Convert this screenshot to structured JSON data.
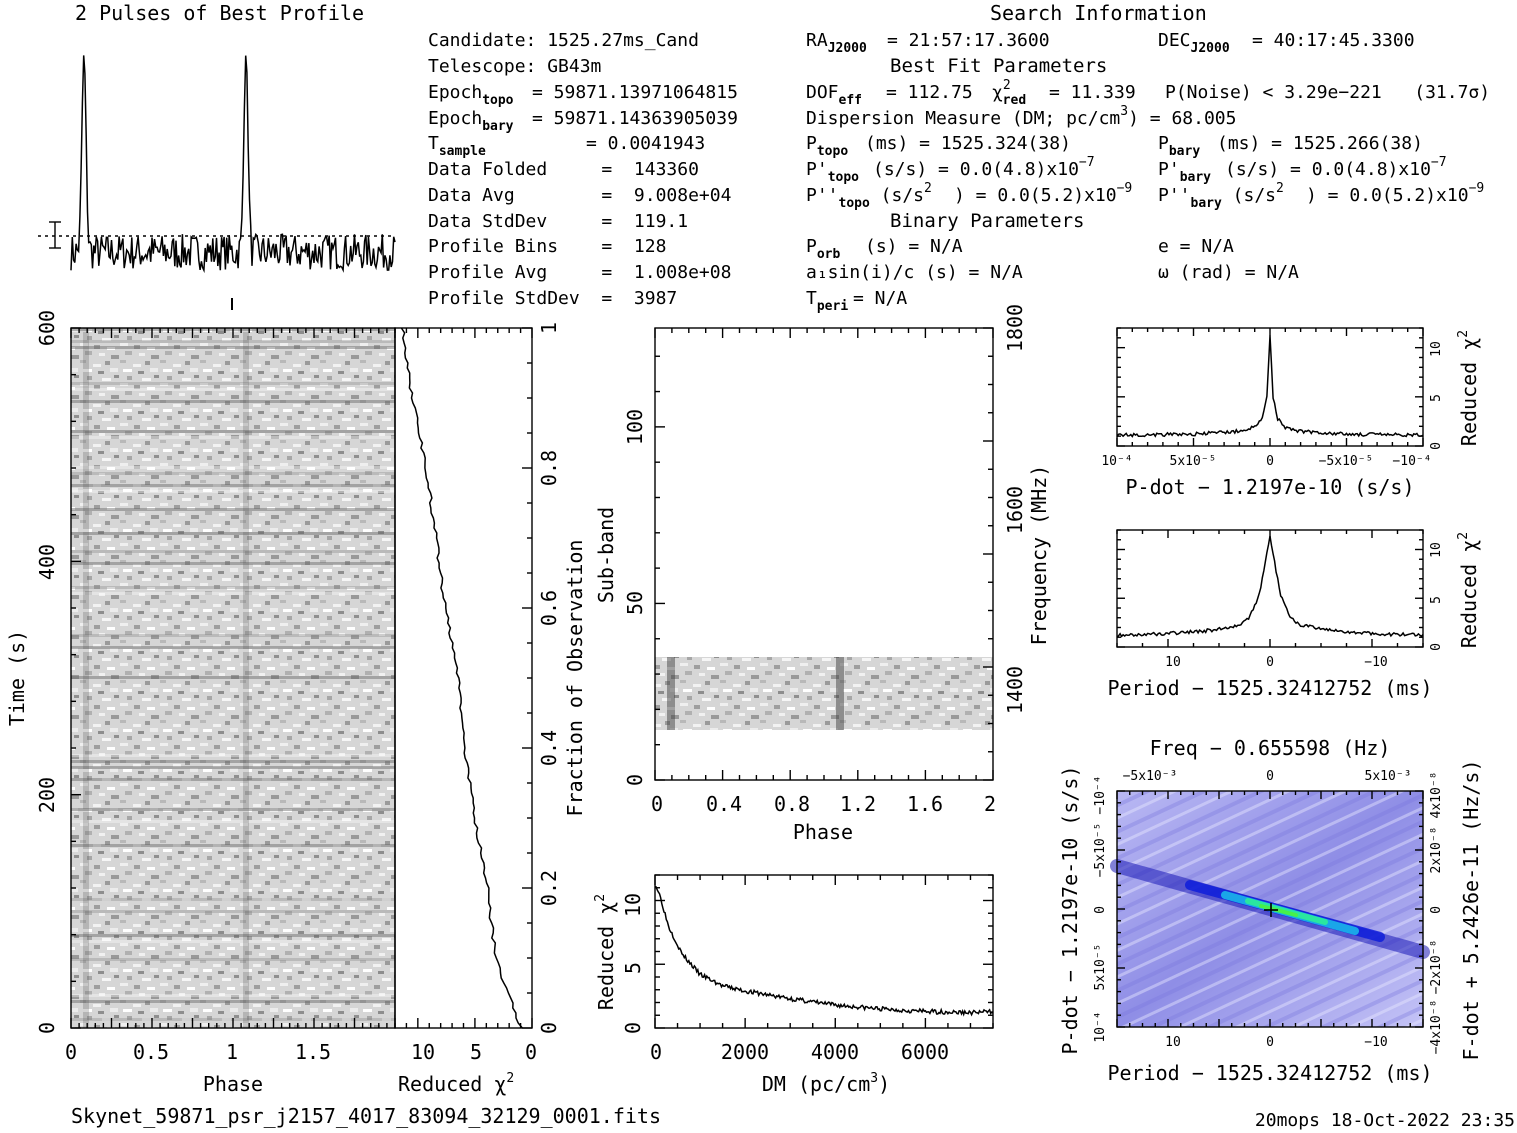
{
  "page": {
    "filename": "Skynet_59871_psr_j2157_4017_83094_32129_0001.fits",
    "footer_right": "20mops 18-Oct-2022 23:35"
  },
  "search_info": {
    "heading": "Search Information",
    "best_fit_heading": "Best Fit Parameters",
    "binary_heading": "Binary Parameters",
    "candidate": "Candidate:  1525.27ms_Cand",
    "telescope": "Telescope:  GB43m",
    "epoch_topo_value": "= 59871.13971064815",
    "epoch_bary_value": "= 59871.14363905039",
    "t_sample_value": "=  0.0041943",
    "data_folded": "Data Folded     =  143360",
    "data_avg": "Data Avg        =  9.008e+04",
    "data_stddev": "Data StdDev     =  119.1",
    "profile_bins": "Profile Bins    =  128",
    "profile_avg": "Profile Avg     =  1.008e+08",
    "profile_stddev": "Profile StdDev  =  3987",
    "ra_value": "= 21:57:17.3600",
    "dec_value": "= 40:17:45.3300",
    "dof_value": "= 112.75",
    "chi2_value": "= 11.339",
    "p_noise": "P(Noise) < 3.29e−221   (31.7σ)",
    "dm_text": "Dispersion Measure (DM; pc/cm",
    "dm_value": ") = 68.005",
    "p_topo": "(ms) =  1525.324(38)",
    "p_bary": "(ms) =  1525.266(38)",
    "pd_topo": "(s/s) = 0.0(4.8)x10",
    "pd_bary": "(s/s) = 0.0(4.8)x10",
    "pd_exp": "−7",
    "pdd_topo": ") = 0.0(5.2)x10",
    "pdd_bary": ") = 0.0(5.2)x10",
    "pdd_exp": "−9",
    "p_orb": "(s) = N/A",
    "a1sini": "a₁sin(i)/c (s) = N/A",
    "t_peri": "= N/A",
    "ecc": "e = N/A",
    "omega": "ω (rad) = N/A"
  },
  "profile_panel": {
    "title": "2 Pulses of Best Profile"
  },
  "time_phase_panel": {
    "xlabel": "Phase",
    "ylabel": "Time (s)",
    "xticks": [
      "0",
      "0.5",
      "1",
      "1.5"
    ],
    "yticks": [
      "0",
      "200",
      "400",
      "600"
    ]
  },
  "chi_vs_time_panel": {
    "xlabel": "Reduced χ²",
    "xticks": [
      "10",
      "5",
      "0"
    ],
    "ylabel": "Fraction of Observation",
    "yticks": [
      "0",
      "0.2",
      "0.4",
      "0.6",
      "0.8",
      "1"
    ]
  },
  "subband_panel": {
    "xlabel": "Phase",
    "ylabel": "Sub-band",
    "ylabel_right": "Frequency (MHz)",
    "xticks": [
      "0",
      "0.4",
      "0.8",
      "1.2",
      "1.6",
      "2"
    ],
    "yticks": [
      "0",
      "50",
      "100"
    ],
    "yticks_right": [
      "1400",
      "1600",
      "1800"
    ]
  },
  "dm_panel": {
    "xlabel": "DM (pc/cm³)",
    "ylabel": "Reduced χ²",
    "xticks": [
      "0",
      "2000",
      "4000",
      "6000"
    ],
    "yticks": [
      "0",
      "5",
      "10"
    ]
  },
  "pdot_panel": {
    "xlabel": "P-dot − 1.2197e-10 (s/s)",
    "ylabel": "Reduced χ²",
    "xticks": [
      "10⁻⁴",
      "5x10⁻⁵",
      "0",
      "−5x10⁻⁵",
      "−10⁻⁴"
    ],
    "yticks": [
      "0",
      "5",
      "10"
    ]
  },
  "period_panel": {
    "xlabel": "Period − 1525.32412752 (ms)",
    "ylabel": "Reduced χ²",
    "xticks": [
      "10",
      "0",
      "−10"
    ],
    "yticks": [
      "0",
      "5",
      "10"
    ]
  },
  "ppdot_panel": {
    "title": "Freq − 0.655598 (Hz)",
    "xlabel": "Period − 1525.32412752 (ms)",
    "ylabel": "P-dot − 1.2197e-10 (s/s)",
    "ylabel_right": "F-dot + 5.2426e-11 (Hz/s)",
    "xticks": [
      "10",
      "0",
      "−10"
    ],
    "top_ticks": [
      "−5x10⁻³",
      "0",
      "5x10⁻³"
    ],
    "yticks": [
      "10⁻⁴",
      "5x10⁻⁵",
      "0",
      "−5x10⁻⁵",
      "−10⁻⁴"
    ],
    "yticks_right": [
      "−4x10⁻⁸",
      "−2x10⁻⁸",
      "0",
      "2x10⁻⁸",
      "4x10⁻⁸"
    ]
  },
  "chart_data": [
    {
      "type": "line",
      "name": "profile",
      "title": "2 Pulses of Best Profile",
      "x": [
        0,
        0.0625,
        0.125,
        0.25,
        0.375,
        0.5,
        0.625,
        0.75,
        0.875,
        1.0,
        1.0625,
        1.125,
        1.25,
        1.375,
        1.5,
        1.625,
        1.75,
        1.875,
        2.0
      ],
      "y": [
        0.05,
        0.95,
        0.12,
        0.08,
        0.05,
        0.07,
        0.04,
        0.09,
        0.05,
        0.05,
        0.95,
        0.12,
        0.08,
        0.05,
        0.07,
        0.04,
        0.09,
        0.05,
        0.05
      ]
    },
    {
      "type": "line",
      "name": "reduced_chi2_vs_fraction",
      "x": [
        0.0,
        0.1,
        0.2,
        0.3,
        0.4,
        0.5,
        0.6,
        0.7,
        0.8,
        0.9,
        1.0
      ],
      "y": [
        1.0,
        3.2,
        3.9,
        5.0,
        5.9,
        6.4,
        7.6,
        8.4,
        9.3,
        10.5,
        11.3
      ],
      "xlabel": "Reduced χ²",
      "ylabel": "Fraction of Observation",
      "xlim": [
        12,
        0
      ],
      "ylim": [
        0,
        1
      ]
    },
    {
      "type": "line",
      "name": "reduced_chi2_vs_dm",
      "x": [
        0,
        100,
        300,
        600,
        1000,
        1500,
        2000,
        3000,
        4000,
        5000,
        6000,
        7000,
        7500
      ],
      "y": [
        11.3,
        10.5,
        8.0,
        5.8,
        4.2,
        3.3,
        2.9,
        2.3,
        1.8,
        1.5,
        1.3,
        1.2,
        1.3
      ],
      "xlabel": "DM (pc/cm³)",
      "ylabel": "Reduced χ²",
      "xlim": [
        0,
        7500
      ],
      "ylim": [
        0,
        12
      ]
    },
    {
      "type": "line",
      "name": "reduced_chi2_vs_pdot",
      "x": [
        0.0001,
        5e-05,
        2e-05,
        1e-05,
        5e-06,
        2e-06,
        0,
        -2e-06,
        -5e-06,
        -1e-05,
        -2e-05,
        -5e-05,
        -0.0001
      ],
      "y": [
        1.1,
        1.2,
        1.5,
        1.9,
        2.8,
        5.0,
        11.3,
        5.0,
        2.8,
        1.9,
        1.5,
        1.2,
        1.1
      ],
      "xlabel": "P-dot − 1.2197e-10 (s/s)",
      "ylabel": "Reduced χ²",
      "ylim": [
        0,
        12
      ]
    },
    {
      "type": "line",
      "name": "reduced_chi2_vs_period",
      "x": [
        15,
        12,
        8,
        5,
        3,
        2,
        1,
        0,
        -1,
        -2,
        -3,
        -5,
        -8,
        -12,
        -15
      ],
      "y": [
        1.2,
        1.3,
        1.5,
        1.8,
        2.3,
        3.0,
        5.5,
        11.3,
        5.5,
        3.0,
        2.3,
        1.8,
        1.5,
        1.3,
        1.2
      ],
      "xlabel": "Period − 1525.32412752 (ms)",
      "ylabel": "Reduced χ²",
      "ylim": [
        0,
        12
      ]
    },
    {
      "type": "heatmap",
      "name": "period_pdot_plane",
      "title": "Freq − 0.655598 (Hz)",
      "xlabel": "Period − 1525.32412752 (ms)",
      "ylabel": "P-dot − 1.2197e-10 (s/s)",
      "peak": [
        0,
        0
      ]
    }
  ]
}
